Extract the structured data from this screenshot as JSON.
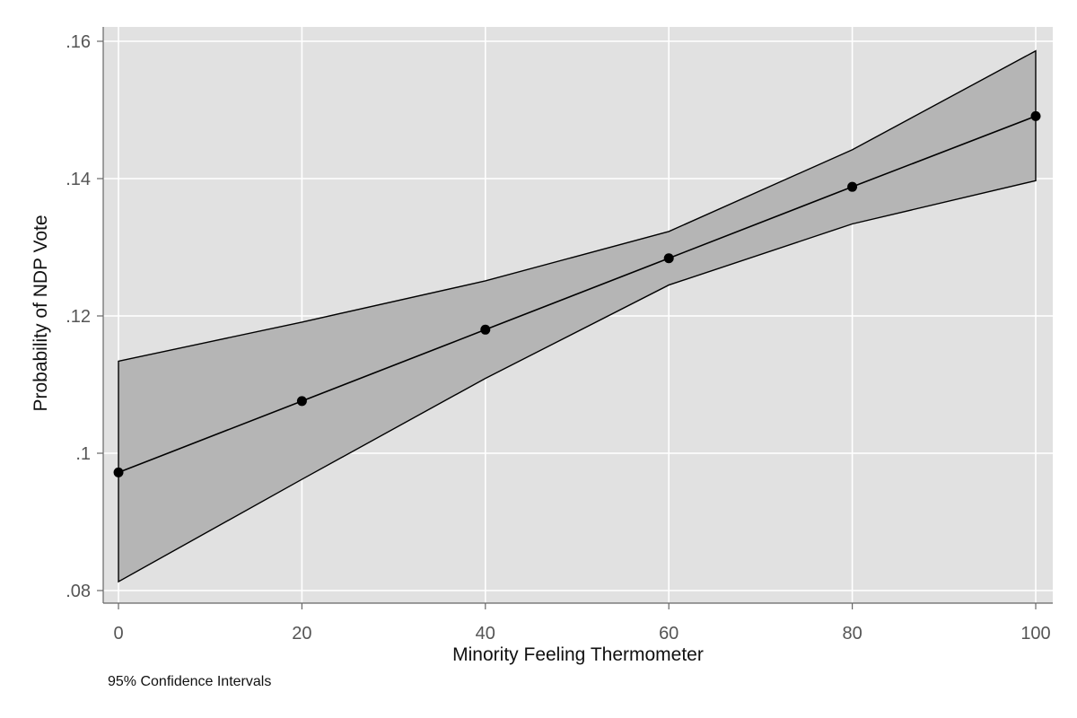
{
  "chart_data": {
    "type": "line",
    "title": "",
    "xlabel": "Minority Feeling Thermometer",
    "ylabel": "Probability of NDP Vote",
    "note": "95% Confidence Intervals",
    "x": [
      0,
      20,
      40,
      60,
      80,
      100
    ],
    "xticks": [
      "0",
      "20",
      "40",
      "60",
      "80",
      "100"
    ],
    "yticks": [
      ".08",
      ".1",
      ".12",
      ".14",
      ".16"
    ],
    "xlim": [
      0,
      100
    ],
    "ylim": [
      0.08,
      0.16
    ],
    "grid": true,
    "series": [
      {
        "values": [
          0.0972,
          0.1076,
          0.118,
          0.1284,
          0.1388,
          0.1491
        ],
        "ci_lower": [
          0.0813,
          0.0962,
          0.1109,
          0.1245,
          0.1334,
          0.1397
        ],
        "ci_upper": [
          0.1134,
          0.1191,
          0.1251,
          0.1323,
          0.1442,
          0.1586
        ]
      }
    ],
    "colors": {
      "plot_background": "#e1e1e1",
      "grid": "#ffffff",
      "ci_fill": "#b5b5b5",
      "line": "#000000",
      "marker": "#000000"
    }
  }
}
